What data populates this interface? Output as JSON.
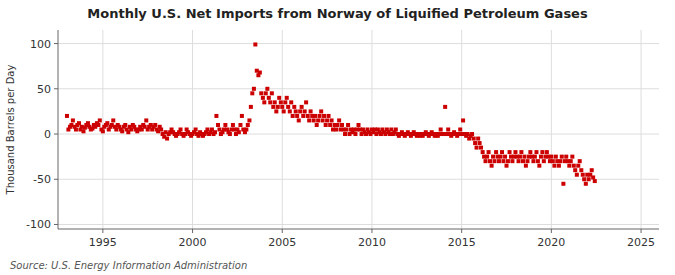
{
  "chart_data": {
    "type": "scatter",
    "title": "Monthly U.S. Net Imports from Norway of Liquified Petroleum Gases",
    "ylabel": "Thousand Barrels per Day",
    "source": "Source: U.S. Energy Information Administration",
    "color": "#CC0000",
    "marker": "square",
    "grid": true,
    "xlim": [
      1992.5,
      2026.0
    ],
    "ylim": [
      -105,
      115
    ],
    "xticks": [
      1995,
      2000,
      2005,
      2010,
      2015,
      2020,
      2025
    ],
    "yticks": [
      -100,
      -50,
      0,
      50,
      100
    ],
    "x": [
      1993.0,
      1993.08,
      1993.17,
      1993.25,
      1993.33,
      1993.42,
      1993.5,
      1993.58,
      1993.67,
      1993.75,
      1993.83,
      1993.92,
      1994.0,
      1994.08,
      1994.17,
      1994.25,
      1994.33,
      1994.42,
      1994.5,
      1994.58,
      1994.67,
      1994.75,
      1994.83,
      1994.92,
      1995.0,
      1995.08,
      1995.17,
      1995.25,
      1995.33,
      1995.42,
      1995.5,
      1995.58,
      1995.67,
      1995.75,
      1995.83,
      1995.92,
      1996.0,
      1996.08,
      1996.17,
      1996.25,
      1996.33,
      1996.42,
      1996.5,
      1996.58,
      1996.67,
      1996.75,
      1996.83,
      1996.92,
      1997.0,
      1997.08,
      1997.17,
      1997.25,
      1997.33,
      1997.42,
      1997.5,
      1997.58,
      1997.67,
      1997.75,
      1997.83,
      1997.92,
      1998.0,
      1998.08,
      1998.17,
      1998.25,
      1998.33,
      1998.42,
      1998.5,
      1998.58,
      1998.67,
      1998.75,
      1998.83,
      1998.92,
      1999.0,
      1999.08,
      1999.17,
      1999.25,
      1999.33,
      1999.42,
      1999.5,
      1999.58,
      1999.67,
      1999.75,
      1999.83,
      1999.92,
      2000.0,
      2000.08,
      2000.17,
      2000.25,
      2000.33,
      2000.42,
      2000.5,
      2000.58,
      2000.67,
      2000.75,
      2000.83,
      2000.92,
      2001.0,
      2001.08,
      2001.17,
      2001.25,
      2001.33,
      2001.42,
      2001.5,
      2001.58,
      2001.67,
      2001.75,
      2001.83,
      2001.92,
      2002.0,
      2002.08,
      2002.17,
      2002.25,
      2002.33,
      2002.42,
      2002.5,
      2002.58,
      2002.67,
      2002.75,
      2002.83,
      2002.92,
      2003.0,
      2003.08,
      2003.17,
      2003.25,
      2003.33,
      2003.42,
      2003.5,
      2003.58,
      2003.67,
      2003.75,
      2003.83,
      2003.92,
      2004.0,
      2004.08,
      2004.17,
      2004.25,
      2004.33,
      2004.42,
      2004.5,
      2004.58,
      2004.67,
      2004.75,
      2004.83,
      2004.92,
      2005.0,
      2005.08,
      2005.17,
      2005.25,
      2005.33,
      2005.42,
      2005.5,
      2005.58,
      2005.67,
      2005.75,
      2005.83,
      2005.92,
      2006.0,
      2006.08,
      2006.17,
      2006.25,
      2006.33,
      2006.42,
      2006.5,
      2006.58,
      2006.67,
      2006.75,
      2006.83,
      2006.92,
      2007.0,
      2007.08,
      2007.17,
      2007.25,
      2007.33,
      2007.42,
      2007.5,
      2007.58,
      2007.67,
      2007.75,
      2007.83,
      2007.92,
      2008.0,
      2008.08,
      2008.17,
      2008.25,
      2008.33,
      2008.42,
      2008.5,
      2008.58,
      2008.67,
      2008.75,
      2008.83,
      2008.92,
      2009.0,
      2009.08,
      2009.17,
      2009.25,
      2009.33,
      2009.42,
      2009.5,
      2009.58,
      2009.67,
      2009.75,
      2009.83,
      2009.92,
      2010.0,
      2010.08,
      2010.17,
      2010.25,
      2010.33,
      2010.42,
      2010.5,
      2010.58,
      2010.67,
      2010.75,
      2010.83,
      2010.92,
      2011.0,
      2011.08,
      2011.17,
      2011.25,
      2011.33,
      2011.42,
      2011.5,
      2011.58,
      2011.67,
      2011.75,
      2011.83,
      2011.92,
      2012.0,
      2012.08,
      2012.17,
      2012.25,
      2012.33,
      2012.42,
      2012.5,
      2012.58,
      2012.67,
      2012.75,
      2012.83,
      2012.92,
      2013.0,
      2013.08,
      2013.17,
      2013.25,
      2013.33,
      2013.42,
      2013.5,
      2013.58,
      2013.67,
      2013.75,
      2013.83,
      2013.92,
      2014.0,
      2014.08,
      2014.17,
      2014.25,
      2014.33,
      2014.42,
      2014.5,
      2014.58,
      2014.67,
      2014.75,
      2014.83,
      2014.92,
      2015.0,
      2015.08,
      2015.17,
      2015.25,
      2015.33,
      2015.42,
      2015.5,
      2015.58,
      2015.67,
      2015.75,
      2015.83,
      2015.92,
      2016.0,
      2016.08,
      2016.17,
      2016.25,
      2016.33,
      2016.42,
      2016.5,
      2016.58,
      2016.67,
      2016.75,
      2016.83,
      2016.92,
      2017.0,
      2017.08,
      2017.17,
      2017.25,
      2017.33,
      2017.42,
      2017.5,
      2017.58,
      2017.67,
      2017.75,
      2017.83,
      2017.92,
      2018.0,
      2018.08,
      2018.17,
      2018.25,
      2018.33,
      2018.42,
      2018.5,
      2018.58,
      2018.67,
      2018.75,
      2018.83,
      2018.92,
      2019.0,
      2019.08,
      2019.17,
      2019.25,
      2019.33,
      2019.42,
      2019.5,
      2019.58,
      2019.67,
      2019.75,
      2019.83,
      2019.92,
      2020.0,
      2020.08,
      2020.17,
      2020.25,
      2020.33,
      2020.42,
      2020.5,
      2020.58,
      2020.67,
      2020.75,
      2020.83,
      2020.92,
      2021.0,
      2021.08,
      2021.17,
      2021.25,
      2021.33,
      2021.42,
      2021.5,
      2021.58,
      2021.67,
      2021.75,
      2021.83,
      2021.92,
      2022.0,
      2022.08,
      2022.17,
      2022.25,
      2022.33,
      2022.42
    ],
    "values": [
      20,
      5,
      8,
      10,
      15,
      8,
      5,
      10,
      12,
      5,
      8,
      3,
      7,
      10,
      12,
      8,
      5,
      6,
      10,
      8,
      12,
      10,
      15,
      5,
      3,
      8,
      10,
      12,
      5,
      8,
      10,
      15,
      8,
      5,
      10,
      8,
      5,
      3,
      8,
      10,
      5,
      2,
      8,
      5,
      10,
      8,
      5,
      3,
      5,
      8,
      5,
      10,
      8,
      15,
      5,
      8,
      10,
      5,
      8,
      10,
      5,
      3,
      8,
      5,
      0,
      -3,
      2,
      -5,
      0,
      2,
      5,
      2,
      0,
      -2,
      0,
      2,
      5,
      0,
      -2,
      0,
      5,
      2,
      0,
      -2,
      0,
      2,
      5,
      0,
      -2,
      2,
      0,
      -2,
      0,
      2,
      5,
      0,
      2,
      5,
      0,
      2,
      20,
      10,
      5,
      0,
      2,
      5,
      10,
      5,
      2,
      0,
      5,
      10,
      5,
      0,
      5,
      2,
      10,
      20,
      5,
      2,
      5,
      10,
      15,
      30,
      45,
      50,
      99,
      70,
      65,
      68,
      45,
      40,
      35,
      45,
      50,
      40,
      35,
      45,
      30,
      35,
      25,
      30,
      40,
      35,
      30,
      25,
      35,
      40,
      30,
      25,
      35,
      20,
      30,
      25,
      20,
      15,
      25,
      30,
      20,
      25,
      35,
      20,
      15,
      25,
      20,
      15,
      20,
      10,
      15,
      20,
      25,
      15,
      20,
      10,
      15,
      20,
      10,
      15,
      5,
      10,
      5,
      10,
      15,
      5,
      10,
      5,
      0,
      5,
      10,
      0,
      5,
      2,
      5,
      0,
      5,
      10,
      5,
      0,
      5,
      2,
      0,
      5,
      2,
      0,
      5,
      2,
      5,
      0,
      5,
      2,
      0,
      5,
      2,
      0,
      5,
      2,
      0,
      5,
      0,
      2,
      5,
      0,
      -2,
      0,
      2,
      0,
      -2,
      0,
      2,
      0,
      -2,
      0,
      2,
      0,
      -2,
      0,
      -2,
      0,
      -2,
      0,
      2,
      0,
      -2,
      0,
      2,
      0,
      -2,
      0,
      -2,
      0,
      5,
      0,
      0,
      30,
      0,
      5,
      0,
      -2,
      0,
      2,
      0,
      -2,
      0,
      5,
      0,
      15,
      0,
      -2,
      0,
      -5,
      -2,
      0,
      -5,
      -10,
      -15,
      -5,
      -10,
      -15,
      -20,
      -25,
      -30,
      -25,
      -20,
      -30,
      -35,
      -25,
      -30,
      -20,
      -25,
      -30,
      -25,
      -20,
      -30,
      -25,
      -35,
      -30,
      -20,
      -25,
      -30,
      -25,
      -20,
      -25,
      -30,
      -25,
      -20,
      -30,
      -25,
      -35,
      -30,
      -25,
      -20,
      -25,
      -30,
      -25,
      -20,
      -30,
      -35,
      -25,
      -20,
      -30,
      -25,
      -20,
      -25,
      -30,
      -25,
      -30,
      -35,
      -25,
      -30,
      -35,
      -30,
      -25,
      -55,
      -30,
      -25,
      -30,
      -35,
      -30,
      -25,
      -35,
      -40,
      -45,
      -35,
      -30,
      -40,
      -45,
      -50,
      -55,
      -45,
      -50,
      -45,
      -40,
      -48,
      -52
    ]
  }
}
